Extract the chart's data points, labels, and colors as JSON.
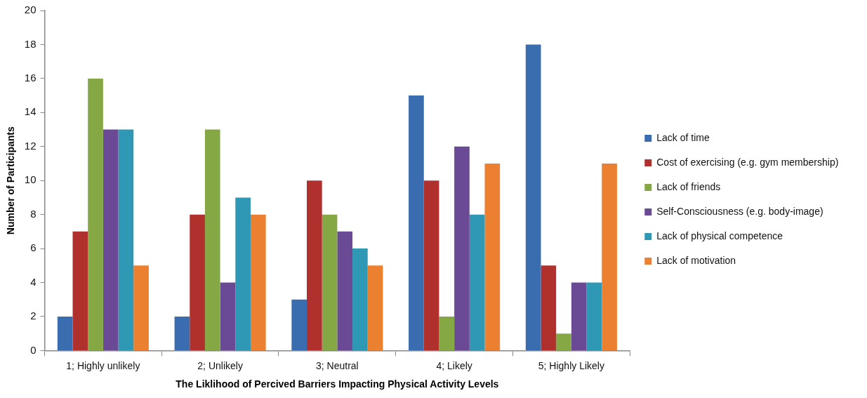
{
  "chart_data": {
    "type": "bar",
    "xlabel": "The Liklihood of Percived Barriers Impacting Physical Activity Levels",
    "ylabel": "Number of Participants",
    "categories": [
      "1; Highly unlikely",
      "2; Unlikely",
      "3; Neutral",
      "4; Likely",
      "5; Highly Likely"
    ],
    "series": [
      {
        "name": "Lack of time",
        "color": "#3a6cb0",
        "values": [
          2,
          2,
          3,
          15,
          18
        ]
      },
      {
        "name": "Cost of exercising (e.g. gym membership)",
        "color": "#b0302e",
        "values": [
          7,
          8,
          10,
          10,
          5
        ]
      },
      {
        "name": "Lack of friends",
        "color": "#86a844",
        "values": [
          16,
          13,
          8,
          2,
          1
        ]
      },
      {
        "name": "Self-Consciousness (e.g. body-image)",
        "color": "#6a4a94",
        "values": [
          13,
          4,
          7,
          12,
          4
        ]
      },
      {
        "name": "Lack of physical competence",
        "color": "#2f98b4",
        "values": [
          13,
          9,
          6,
          8,
          4
        ]
      },
      {
        "name": "Lack of motivation",
        "color": "#ea8030",
        "values": [
          5,
          8,
          5,
          11,
          11
        ]
      }
    ],
    "ylim": [
      0,
      20
    ],
    "yticks": [
      0,
      2,
      4,
      6,
      8,
      10,
      12,
      14,
      16,
      18,
      20
    ],
    "legend": "right"
  }
}
